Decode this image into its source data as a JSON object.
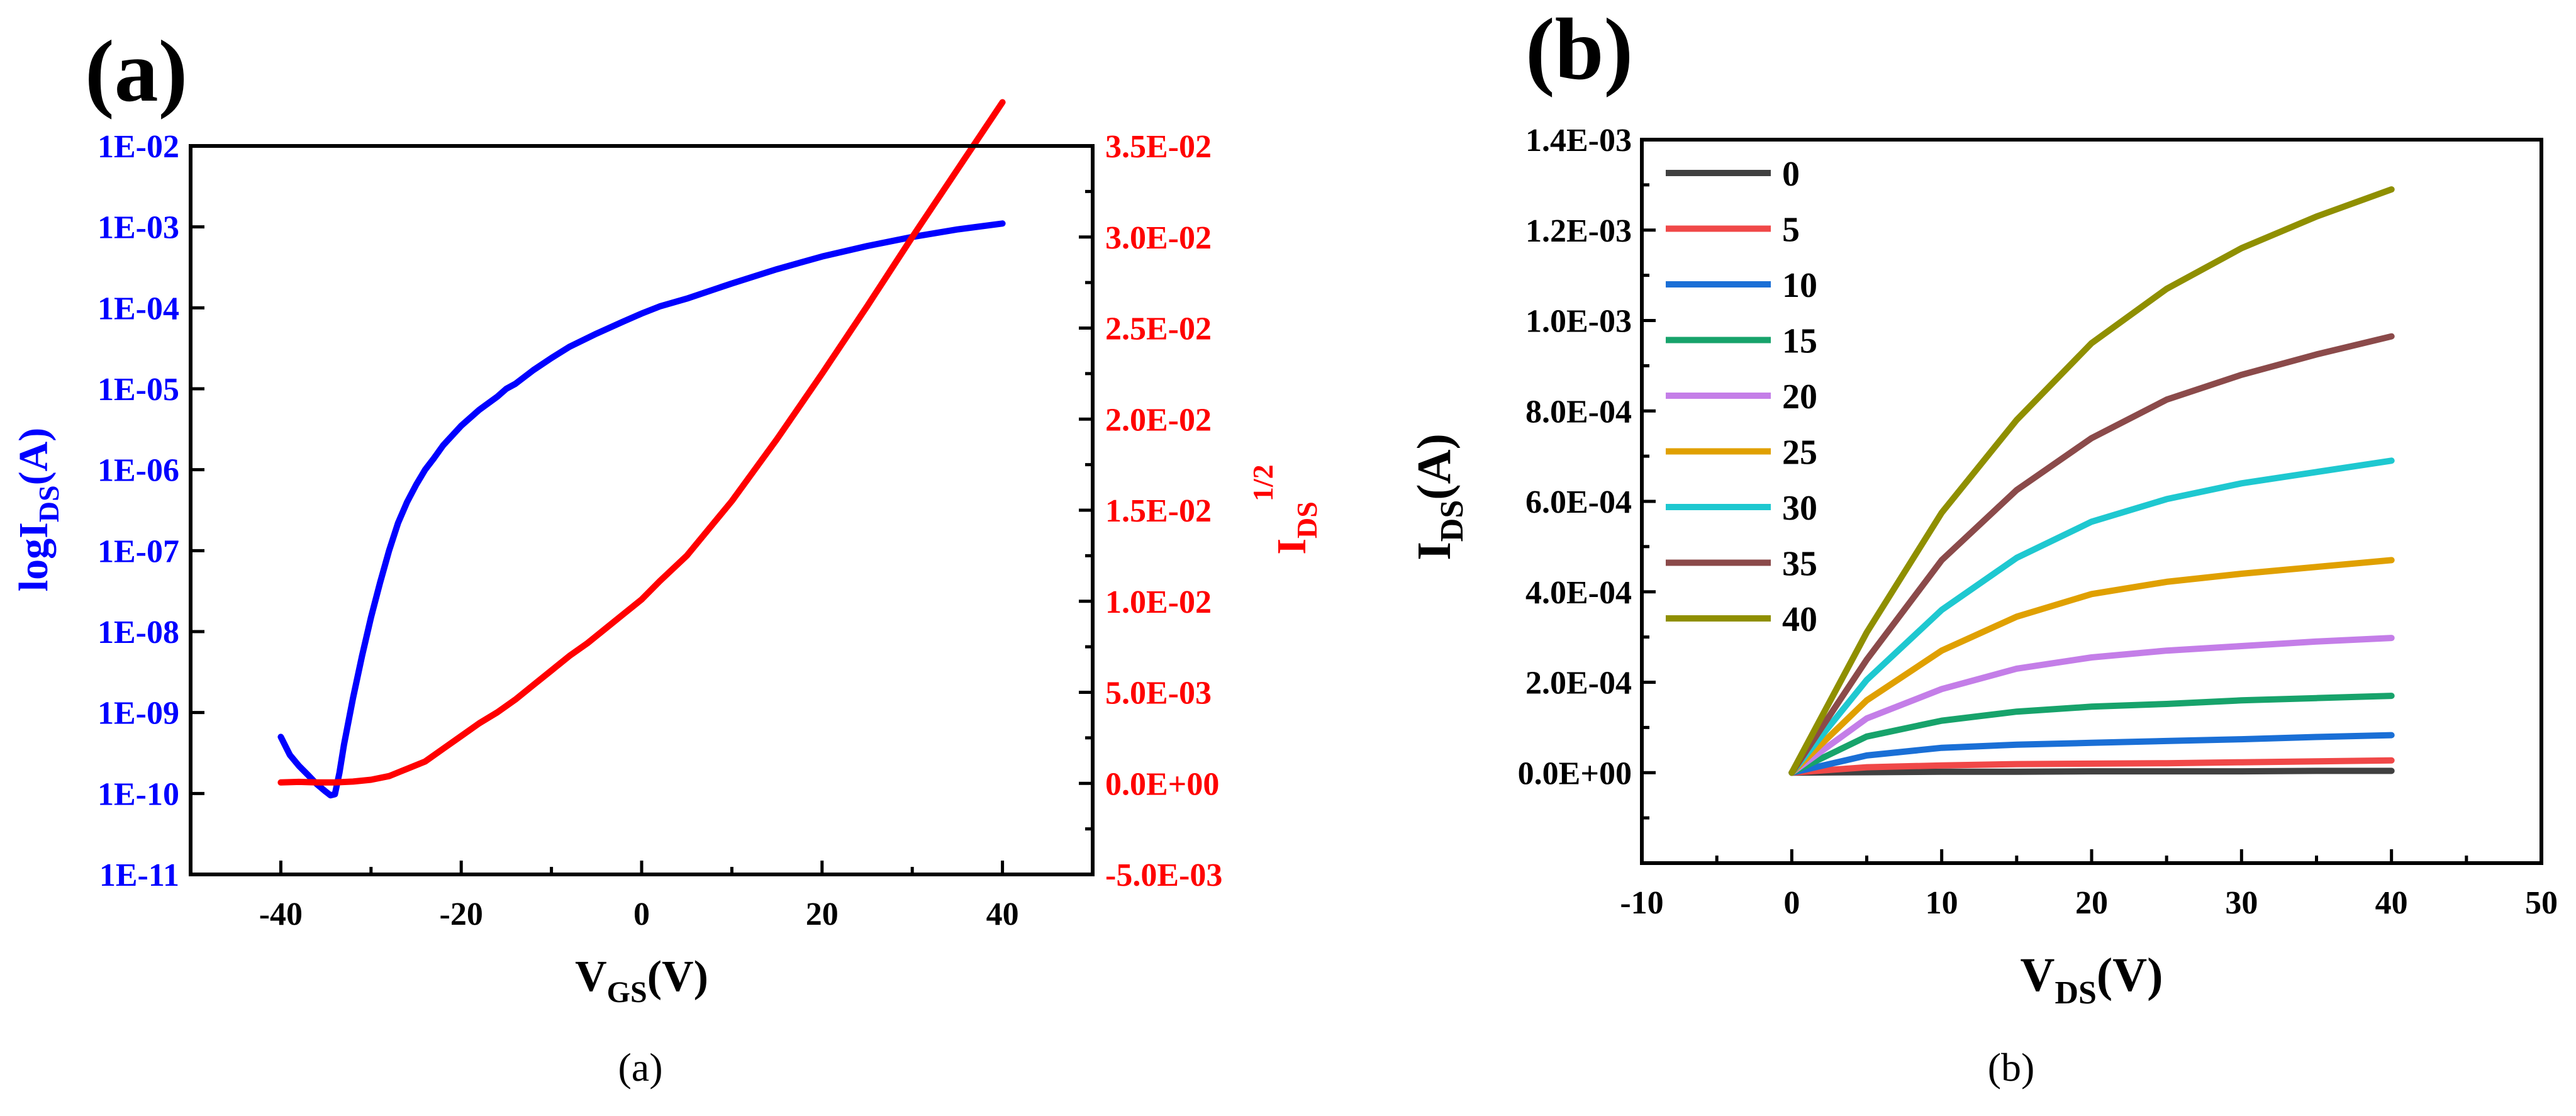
{
  "chart_data": [
    {
      "type": "line",
      "panel_label": "(a)",
      "caption": "(a)",
      "xlabel": {
        "main": "V",
        "sub": "GS",
        "tail": "(V)"
      },
      "x_ticks": [
        "-40",
        "-20",
        "0",
        "20",
        "40"
      ],
      "xlim": [
        -50,
        50
      ],
      "left_axis": {
        "label": {
          "main": "logI",
          "sub": "DS",
          "tail": "(A)"
        },
        "color": "#0000ff",
        "scale": "log",
        "ylim": [
          1e-11,
          0.01
        ],
        "ticks": [
          "1E-02",
          "1E-03",
          "1E-04",
          "1E-05",
          "1E-06",
          "1E-07",
          "1E-08",
          "1E-09",
          "1E-10",
          "1E-11"
        ]
      },
      "right_axis": {
        "label": {
          "main": "I",
          "sub": "DS",
          "sup": "1/2"
        },
        "color": "#ff0000",
        "scale": "linear",
        "ylim": [
          -0.005,
          0.035
        ],
        "ticks": [
          "3.5E-02",
          "3.0E-02",
          "2.5E-02",
          "2.0E-02",
          "1.5E-02",
          "1.0E-02",
          "5.0E-03",
          "0.0E+00",
          "-5.0E-03"
        ]
      },
      "series": [
        {
          "name": "logIDS",
          "axis": "left",
          "color": "#0000ff",
          "x": [
            -40,
            -39,
            -38,
            -37,
            -36,
            -35,
            -34.5,
            -34,
            -33.5,
            -33,
            -32,
            -31,
            -30,
            -29,
            -28,
            -27,
            -26,
            -25,
            -24,
            -23,
            -22,
            -20,
            -18,
            -16,
            -15,
            -14,
            -12,
            -10,
            -8,
            -5,
            -2,
            0,
            2,
            5,
            10,
            15,
            20,
            25,
            30,
            35,
            40
          ],
          "y": [
            5e-10,
            3e-10,
            2.2e-10,
            1.7e-10,
            1.3e-10,
            1.05e-10,
            9.5e-11,
            9.8e-11,
            1.8e-10,
            4e-10,
            1.5e-09,
            5e-09,
            1.5e-08,
            4e-08,
            1e-07,
            2.2e-07,
            4e-07,
            6.5e-07,
            1e-06,
            1.4e-06,
            2e-06,
            3.5e-06,
            5.5e-06,
            8e-06,
            1e-05,
            1.15e-05,
            1.7e-05,
            2.4e-05,
            3.3e-05,
            4.8e-05,
            6.8e-05,
            8.5e-05,
            0.000104,
            0.00013,
            0.0002,
            0.0003,
            0.00043,
            0.00058,
            0.00075,
            0.00093,
            0.0011
          ]
        },
        {
          "name": "IDS^1/2",
          "axis": "right",
          "color": "#ff0000",
          "x": [
            -40,
            -38,
            -36,
            -34,
            -32,
            -30,
            -28,
            -26,
            -24,
            -22,
            -20,
            -18,
            -16,
            -14,
            -12,
            -10,
            -8,
            -6,
            -4,
            -2,
            0,
            2,
            5,
            10,
            15,
            20,
            25,
            30,
            35,
            40
          ],
          "y": [
            5e-05,
            8e-05,
            5e-05,
            5e-05,
            0.0001,
            0.0002,
            0.0004,
            0.0008,
            0.0012,
            0.0019,
            0.0026,
            0.0033,
            0.0039,
            0.0046,
            0.0054,
            0.0062,
            0.007,
            0.0077,
            0.0085,
            0.0093,
            0.0101,
            0.0111,
            0.0125,
            0.0155,
            0.0189,
            0.0225,
            0.0262,
            0.03,
            0.0337,
            0.0374
          ]
        }
      ]
    },
    {
      "type": "line",
      "panel_label": "(b)",
      "caption": "(b)",
      "xlabel": {
        "main": "V",
        "sub": "DS",
        "tail": "(V)"
      },
      "ylabel": {
        "main": "I",
        "sub": "DS",
        "tail": "(A)"
      },
      "xlim": [
        -10,
        50
      ],
      "ylim": [
        -0.0002,
        0.0014
      ],
      "x_ticks": [
        "-10",
        "0",
        "10",
        "20",
        "30",
        "40",
        "50"
      ],
      "y_ticks": [
        "1.4E-03",
        "1.2E-03",
        "1.0E-03",
        "8.0E-04",
        "6.0E-04",
        "4.0E-04",
        "2.0E-04",
        "0.0E+00"
      ],
      "legend_position": "top-left",
      "x": [
        0,
        5,
        10,
        15,
        20,
        25,
        30,
        35,
        40
      ],
      "series": [
        {
          "name": "0",
          "color": "#404040",
          "values": [
            0,
            1e-06,
            2e-06,
            2e-06,
            3e-06,
            3e-06,
            3e-06,
            4e-06,
            4e-06
          ]
        },
        {
          "name": "5",
          "color": "#f04848",
          "values": [
            0,
            1.2e-05,
            1.6e-05,
            1.9e-05,
            2e-05,
            2.1e-05,
            2.3e-05,
            2.5e-05,
            2.7e-05
          ]
        },
        {
          "name": "10",
          "color": "#1a6fd6",
          "values": [
            0,
            3.8e-05,
            5.5e-05,
            6.2e-05,
            6.6e-05,
            7e-05,
            7.4e-05,
            7.9e-05,
            8.3e-05
          ]
        },
        {
          "name": "15",
          "color": "#17a36b",
          "values": [
            0,
            8e-05,
            0.000115,
            0.000135,
            0.000146,
            0.000152,
            0.00016,
            0.000165,
            0.00017
          ]
        },
        {
          "name": "20",
          "color": "#c47ee8",
          "values": [
            0,
            0.00012,
            0.000185,
            0.00023,
            0.000255,
            0.00027,
            0.00028,
            0.00029,
            0.000298
          ]
        },
        {
          "name": "25",
          "color": "#e0a000",
          "values": [
            0,
            0.00016,
            0.00027,
            0.000345,
            0.000395,
            0.000422,
            0.00044,
            0.000455,
            0.00047
          ]
        },
        {
          "name": "30",
          "color": "#1ec8d0",
          "values": [
            0,
            0.000205,
            0.00036,
            0.000475,
            0.000555,
            0.000605,
            0.00064,
            0.000665,
            0.00069
          ]
        },
        {
          "name": "35",
          "color": "#8b4a4a",
          "values": [
            0,
            0.00025,
            0.00047,
            0.000625,
            0.00074,
            0.000825,
            0.00088,
            0.000925,
            0.000965
          ]
        },
        {
          "name": "40",
          "color": "#8f8f00",
          "values": [
            0,
            0.00031,
            0.000575,
            0.00078,
            0.00095,
            0.00107,
            0.00116,
            0.00123,
            0.00129
          ]
        }
      ]
    }
  ]
}
